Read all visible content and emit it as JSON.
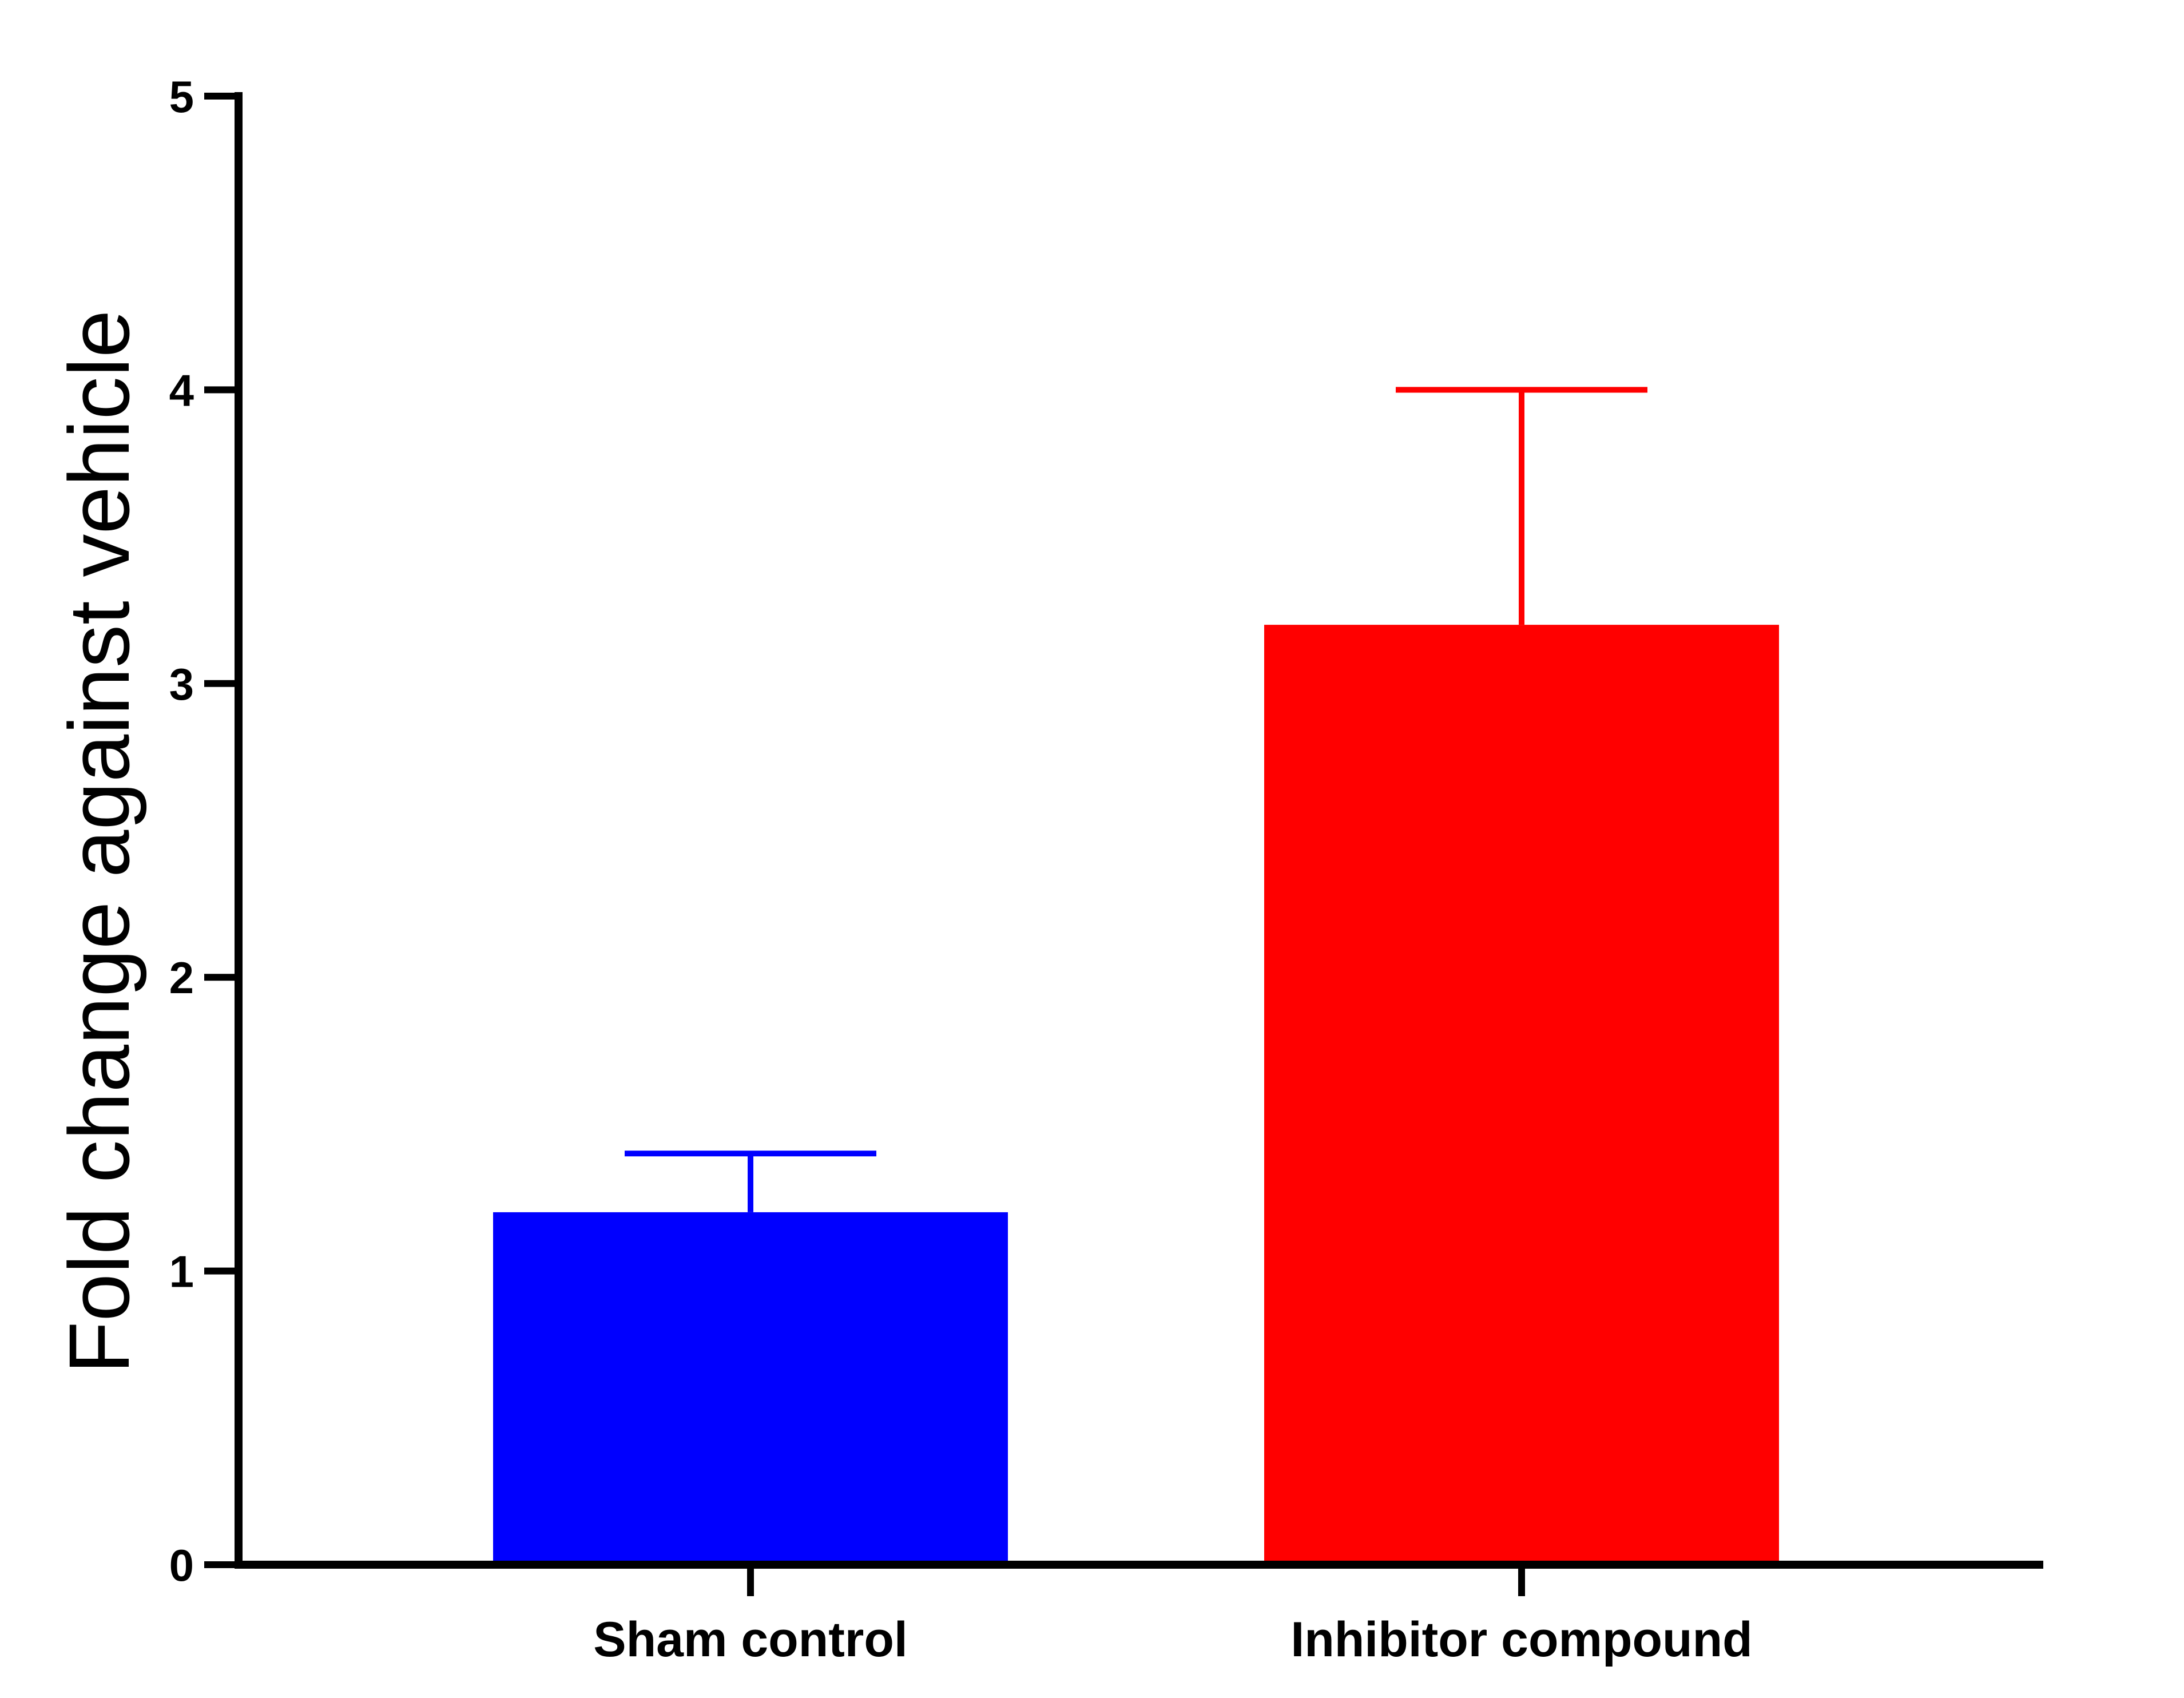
{
  "chart_data": {
    "type": "bar",
    "title": "",
    "xlabel": "",
    "ylabel": "Fold change against vehicle",
    "categories": [
      "Sham control",
      "Inhibitor compound"
    ],
    "values": [
      1.2,
      3.2
    ],
    "error_upper": [
      1.4,
      4.0
    ],
    "colors": [
      "#0000ff",
      "#ff0000"
    ],
    "ylim": [
      0,
      5
    ],
    "yticks": [
      "0",
      "1",
      "2",
      "3",
      "4",
      "5"
    ],
    "grid": false,
    "legend": "none"
  }
}
